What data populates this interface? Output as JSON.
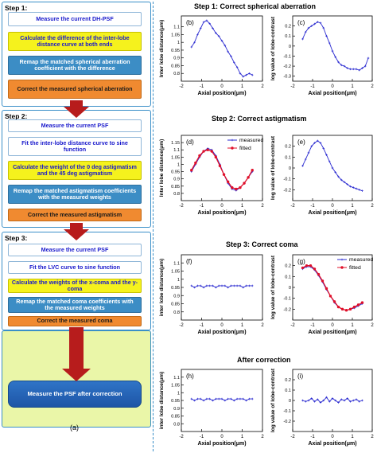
{
  "left": {
    "steps": [
      {
        "label": "Step 1:",
        "boxes": [
          "Measure the current  DH-PSF",
          "Calculate the difference of the inter-lobe distance curve at both ends",
          "Remap the matched spherical aberration coefficient with the difference",
          "Correct the measured spherical aberration"
        ]
      },
      {
        "label": "Step 2:",
        "boxes": [
          "Measure the current PSF",
          "Fit the inter-lobe distance curve to sine function",
          "Calculate the weight of the 0 deg astigmatism and the 45 deg astigmatism",
          "Remap the matched astigmatism coefficients with the measured weights",
          "Correct the measured astigmatism"
        ]
      },
      {
        "label": "Step 3:",
        "boxes": [
          "Measure the current PSF",
          "Fit the LVC curve to sine function",
          "Calculate the weights of the x-coma and the y-coma",
          "Remap the matched coma coefficients with the measured weights",
          "Correct the measured coma"
        ]
      }
    ],
    "final_box": "Measure the PSF after correction",
    "panel_label": "(a)"
  },
  "right": {
    "titles": [
      "Step 1: Correct spherical aberration",
      "Step 2: Correct  astigmatism",
      "Step 3: Correct  coma",
      "After correction"
    ]
  },
  "chart_data": [
    {
      "type": "line",
      "panel": "(b)",
      "xlabel": "Axial position(μm)",
      "ylabel": "Inter lobe distance(μm)",
      "xlim": [
        -2,
        2
      ],
      "ylim": [
        0.75,
        1.17
      ],
      "xticks": [
        -2,
        -1,
        0,
        1,
        2
      ],
      "yticks": [
        0.8,
        0.85,
        0.9,
        0.95,
        1,
        1.05,
        1.1
      ],
      "series": [
        {
          "x": [
            -1.5,
            -1.35,
            -1.2,
            -1.05,
            -0.9,
            -0.75,
            -0.6,
            -0.45,
            -0.3,
            -0.15,
            0,
            0.15,
            0.3,
            0.45,
            0.6,
            0.75,
            0.9,
            1.05,
            1.2,
            1.35,
            1.5
          ],
          "y": [
            0.97,
            1.0,
            1.05,
            1.09,
            1.13,
            1.14,
            1.12,
            1.09,
            1.06,
            1.04,
            1.01,
            0.98,
            0.94,
            0.91,
            0.87,
            0.84,
            0.8,
            0.78,
            0.79,
            0.8,
            0.79
          ]
        }
      ]
    },
    {
      "type": "line",
      "panel": "(c)",
      "xlabel": "Axial position(μm)",
      "ylabel": "log value of lobe-contrast",
      "xlim": [
        -2,
        2
      ],
      "ylim": [
        -0.35,
        0.3
      ],
      "xticks": [
        -2,
        -1,
        0,
        1,
        2
      ],
      "yticks": [
        -0.3,
        -0.2,
        -0.1,
        0,
        0.1,
        0.2
      ],
      "series": [
        {
          "x": [
            -1.5,
            -1.35,
            -1.2,
            -1.05,
            -0.9,
            -0.75,
            -0.6,
            -0.45,
            -0.3,
            -0.15,
            0,
            0.15,
            0.3,
            0.45,
            0.6,
            0.75,
            0.9,
            1.05,
            1.2,
            1.35,
            1.5,
            1.65,
            1.8
          ],
          "y": [
            0.07,
            0.14,
            0.18,
            0.2,
            0.22,
            0.24,
            0.23,
            0.18,
            0.1,
            0.03,
            -0.05,
            -0.11,
            -0.16,
            -0.19,
            -0.2,
            -0.22,
            -0.23,
            -0.23,
            -0.23,
            -0.24,
            -0.22,
            -0.2,
            -0.12
          ]
        }
      ]
    },
    {
      "type": "line",
      "panel": "(d)",
      "xlabel": "Axial position(μm)",
      "ylabel": "Inter lobe distance(μm)",
      "xlim": [
        -2,
        2
      ],
      "ylim": [
        0.75,
        1.2
      ],
      "xticks": [
        -2,
        -1,
        0,
        1,
        2
      ],
      "yticks": [
        0.8,
        0.85,
        0.9,
        0.95,
        1,
        1.05,
        1.1,
        1.15
      ],
      "legend": [
        "measured",
        "fitted"
      ],
      "series": [
        {
          "name": "measured",
          "x": [
            -1.5,
            -1.3,
            -1.1,
            -0.9,
            -0.7,
            -0.5,
            -0.3,
            -0.1,
            0.1,
            0.3,
            0.5,
            0.7,
            0.9,
            1.1,
            1.3,
            1.5
          ],
          "y": [
            0.95,
            1.0,
            1.05,
            1.09,
            1.11,
            1.1,
            1.06,
            1.0,
            0.93,
            0.87,
            0.83,
            0.82,
            0.84,
            0.87,
            0.91,
            0.95
          ]
        },
        {
          "name": "fitted",
          "x": [
            -1.5,
            -1.3,
            -1.1,
            -0.9,
            -0.7,
            -0.5,
            -0.3,
            -0.1,
            0.1,
            0.3,
            0.5,
            0.7,
            0.9,
            1.1,
            1.3,
            1.5
          ],
          "y": [
            0.96,
            1.01,
            1.06,
            1.09,
            1.1,
            1.09,
            1.05,
            0.99,
            0.93,
            0.88,
            0.84,
            0.83,
            0.84,
            0.87,
            0.91,
            0.96
          ]
        }
      ]
    },
    {
      "type": "line",
      "panel": "(e)",
      "xlabel": "Axial position(μm)",
      "ylabel": "log value of lobe-contrast",
      "xlim": [
        -2,
        2
      ],
      "ylim": [
        -0.3,
        0.3
      ],
      "xticks": [
        -2,
        -1,
        0,
        1,
        2
      ],
      "yticks": [
        -0.2,
        -0.1,
        0,
        0.1,
        0.2
      ],
      "series": [
        {
          "x": [
            -1.5,
            -1.35,
            -1.2,
            -1.05,
            -0.9,
            -0.75,
            -0.6,
            -0.45,
            -0.3,
            -0.15,
            0,
            0.15,
            0.3,
            0.45,
            0.6,
            0.75,
            0.9,
            1.05,
            1.2,
            1.35,
            1.5
          ],
          "y": [
            0.02,
            0.08,
            0.14,
            0.2,
            0.23,
            0.25,
            0.23,
            0.18,
            0.12,
            0.06,
            0.0,
            -0.04,
            -0.08,
            -0.11,
            -0.13,
            -0.15,
            -0.17,
            -0.18,
            -0.19,
            -0.2,
            -0.21
          ]
        }
      ]
    },
    {
      "type": "line",
      "panel": "(f)",
      "xlabel": "Axial position(μm)",
      "ylabel": "inter lobe distance(μm)",
      "xlim": [
        -2,
        2
      ],
      "ylim": [
        0.75,
        1.15
      ],
      "xticks": [
        -2,
        -1,
        0,
        1,
        2
      ],
      "yticks": [
        0.8,
        0.85,
        0.9,
        0.95,
        1,
        1.05,
        1.1
      ],
      "series": [
        {
          "x": [
            -1.5,
            -1.35,
            -1.2,
            -1.05,
            -0.9,
            -0.75,
            -0.6,
            -0.45,
            -0.3,
            -0.15,
            0,
            0.15,
            0.3,
            0.45,
            0.6,
            0.75,
            0.9,
            1.05,
            1.2,
            1.35,
            1.5
          ],
          "y": [
            0.96,
            0.95,
            0.96,
            0.96,
            0.95,
            0.96,
            0.96,
            0.96,
            0.95,
            0.96,
            0.96,
            0.96,
            0.95,
            0.96,
            0.96,
            0.96,
            0.96,
            0.95,
            0.96,
            0.96,
            0.96
          ]
        }
      ]
    },
    {
      "type": "line",
      "panel": "(g)",
      "xlabel": "Axial position(μm)",
      "ylabel": "log value of lobe-contrast",
      "xlim": [
        -2,
        2
      ],
      "ylim": [
        -0.3,
        0.3
      ],
      "xticks": [
        -2,
        -1,
        0,
        1,
        2
      ],
      "yticks": [
        -0.2,
        -0.1,
        0,
        0.1,
        0.2
      ],
      "legend": [
        "measured",
        "fitted"
      ],
      "series": [
        {
          "name": "measured",
          "x": [
            -1.5,
            -1.3,
            -1.1,
            -0.9,
            -0.7,
            -0.5,
            -0.3,
            -0.1,
            0.1,
            0.3,
            0.5,
            0.7,
            0.9,
            1.1,
            1.3,
            1.5
          ],
          "y": [
            0.17,
            0.19,
            0.19,
            0.16,
            0.11,
            0.05,
            -0.02,
            -0.08,
            -0.14,
            -0.18,
            -0.2,
            -0.21,
            -0.2,
            -0.19,
            -0.17,
            -0.15
          ]
        },
        {
          "name": "fitted",
          "x": [
            -1.5,
            -1.3,
            -1.1,
            -0.9,
            -0.7,
            -0.5,
            -0.3,
            -0.1,
            0.1,
            0.3,
            0.5,
            0.7,
            0.9,
            1.1,
            1.3,
            1.5
          ],
          "y": [
            0.18,
            0.2,
            0.2,
            0.17,
            0.12,
            0.06,
            -0.01,
            -0.08,
            -0.13,
            -0.18,
            -0.2,
            -0.21,
            -0.2,
            -0.18,
            -0.16,
            -0.14
          ]
        }
      ]
    },
    {
      "type": "line",
      "panel": "(h)",
      "xlabel": "Axial position(μm)",
      "ylabel": "inter lobe distance(μm)",
      "xlim": [
        -2,
        2
      ],
      "ylim": [
        0.75,
        1.15
      ],
      "xticks": [
        -2,
        -1,
        0,
        1,
        2
      ],
      "yticks": [
        0.8,
        0.85,
        0.9,
        0.95,
        1,
        1.05,
        1.1
      ],
      "series": [
        {
          "x": [
            -1.5,
            -1.35,
            -1.2,
            -1.05,
            -0.9,
            -0.75,
            -0.6,
            -0.45,
            -0.3,
            -0.15,
            0,
            0.15,
            0.3,
            0.45,
            0.6,
            0.75,
            0.9,
            1.05,
            1.2,
            1.35,
            1.5
          ],
          "y": [
            0.96,
            0.95,
            0.96,
            0.96,
            0.95,
            0.96,
            0.96,
            0.95,
            0.96,
            0.96,
            0.96,
            0.95,
            0.96,
            0.96,
            0.95,
            0.96,
            0.96,
            0.96,
            0.95,
            0.96,
            0.96
          ]
        }
      ]
    },
    {
      "type": "line",
      "panel": "(i)",
      "xlabel": "Axial position(μm)",
      "ylabel": "log value of lobe-contrast",
      "xlim": [
        -2,
        2
      ],
      "ylim": [
        -0.3,
        0.3
      ],
      "xticks": [
        -2,
        -1,
        0,
        1,
        2
      ],
      "yticks": [
        -0.2,
        -0.1,
        0,
        0.1,
        0.2
      ],
      "series": [
        {
          "x": [
            -1.5,
            -1.35,
            -1.2,
            -1.05,
            -0.9,
            -0.75,
            -0.6,
            -0.45,
            -0.3,
            -0.15,
            0,
            0.15,
            0.3,
            0.45,
            0.6,
            0.75,
            0.9,
            1.05,
            1.2,
            1.35,
            1.5
          ],
          "y": [
            0.0,
            -0.01,
            0.0,
            0.02,
            -0.01,
            0.01,
            -0.02,
            0.0,
            0.03,
            -0.01,
            0.02,
            0.0,
            -0.02,
            0.01,
            0.0,
            0.02,
            -0.01,
            0.0,
            0.01,
            -0.01,
            0.0
          ]
        }
      ]
    }
  ],
  "colors": {
    "panel_border": "#3a8fc8",
    "divider": "#3a8fc8",
    "arrow": "#b71c1c",
    "measured": "#2a2ad0",
    "fitted": "#e0102a",
    "final_bg": "#eaf6a8"
  }
}
